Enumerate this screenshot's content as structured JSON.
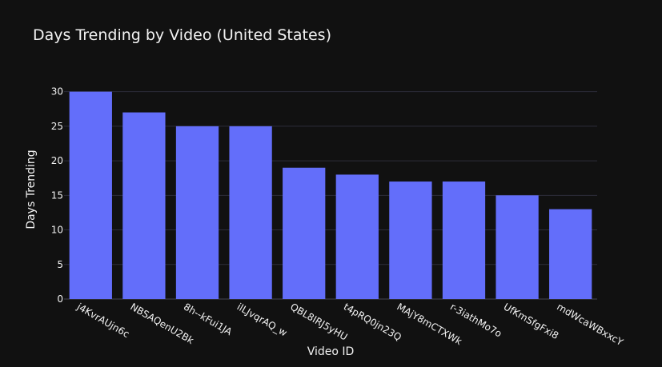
{
  "chart_data": {
    "type": "bar",
    "title": "Days Trending by Video (United States)",
    "xlabel": "Video ID",
    "ylabel": "Days Trending",
    "categories": [
      "j4KvrAUjn6c",
      "NBSAQenU2Bk",
      "8h--kFui1JA",
      "ilLJvqrAQ_w",
      "QBL8IRJ5yHU",
      "t4pRQ0jn23Q",
      "MAjY8mCTXWk",
      "r-3iathMo7o",
      "UfKmSfgFxi8",
      "mdWcaWBxxcY"
    ],
    "values": [
      30,
      27,
      25,
      25,
      19,
      18,
      17,
      17,
      15,
      13
    ],
    "ylim": [
      0,
      31
    ],
    "yticks": [
      0,
      5,
      10,
      15,
      20,
      25,
      30
    ],
    "grid": true,
    "colors": {
      "bar": "#636efa",
      "background": "#111111",
      "text": "#f2f2f2",
      "grid": "#2d2d3a"
    }
  }
}
